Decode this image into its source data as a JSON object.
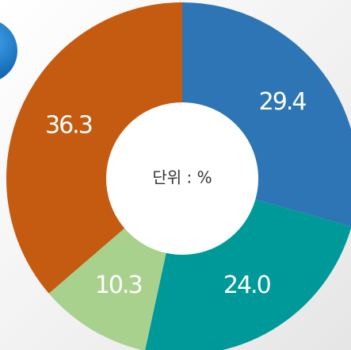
{
  "chart_data": {
    "type": "donut",
    "values": [
      29.4,
      24.0,
      10.3,
      36.3
    ],
    "value_labels": [
      "29.4",
      "24.0",
      "10.3",
      "36.3"
    ],
    "colors": [
      "#2e75b6",
      "#00999a",
      "#a9d18e",
      "#c55a11"
    ],
    "center_label": "단위 : %"
  }
}
